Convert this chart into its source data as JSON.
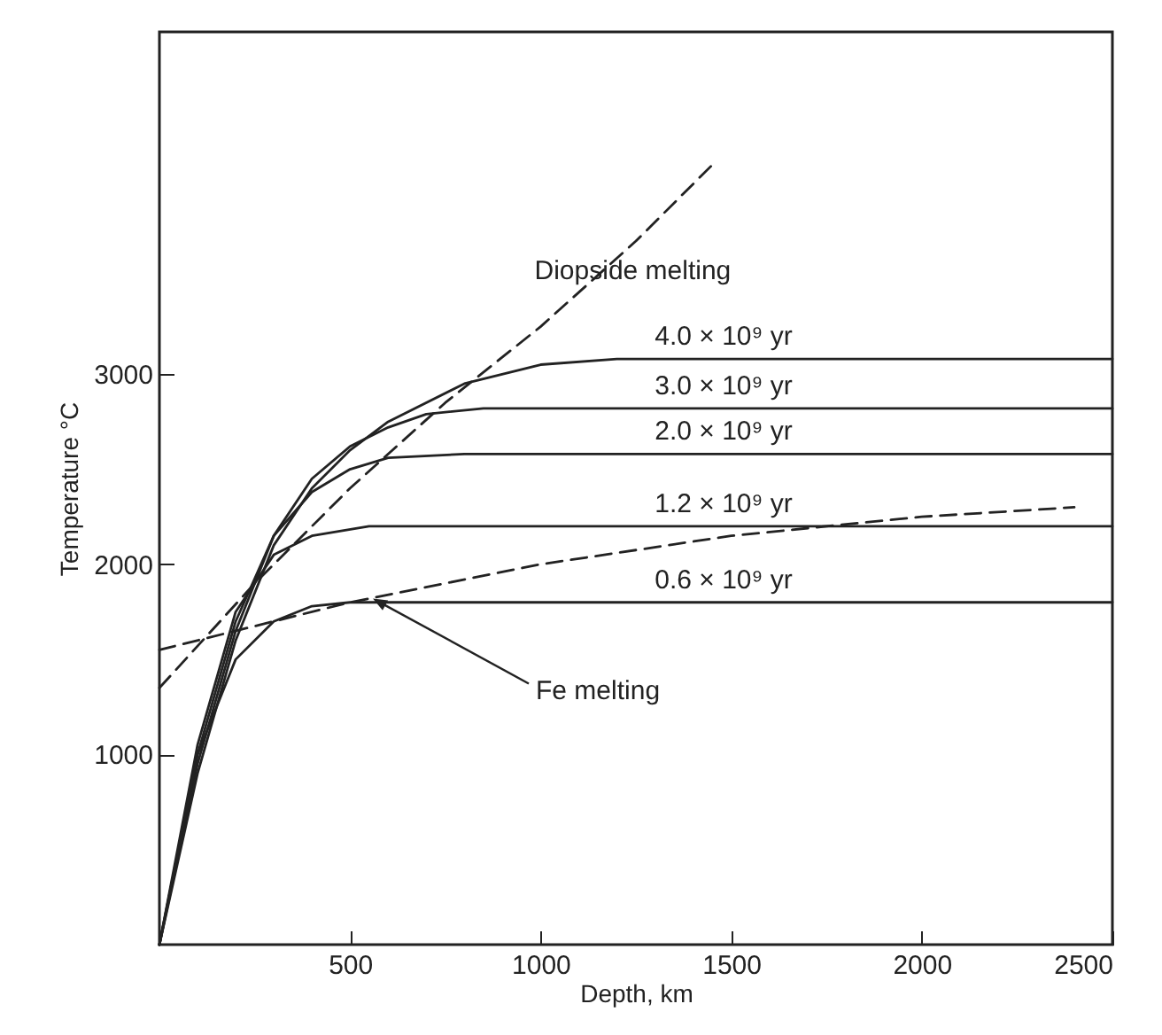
{
  "chart_data": {
    "type": "line",
    "xlabel": "Depth, km",
    "ylabel": "Temperature °C",
    "xlim": [
      0,
      2500
    ],
    "ylim": [
      0,
      4800
    ],
    "xticks": [
      500,
      1000,
      1500,
      2000,
      2500
    ],
    "yticks": [
      1000,
      2000,
      3000
    ],
    "grid": false,
    "series": [
      {
        "color": "#222222",
        "line_style": "solid",
        "x": [
          0,
          100,
          200,
          300,
          400,
          500,
          600,
          800,
          1000,
          1200,
          2500
        ],
        "values": [
          0,
          900,
          1600,
          2100,
          2400,
          2600,
          2750,
          2950,
          3050,
          3080,
          3080
        ]
      },
      {
        "color": "#222222",
        "line_style": "solid",
        "x": [
          0,
          100,
          200,
          300,
          400,
          500,
          600,
          700,
          850,
          2500
        ],
        "values": [
          0,
          950,
          1650,
          2150,
          2450,
          2620,
          2720,
          2790,
          2820,
          2820
        ]
      },
      {
        "color": "#222222",
        "line_style": "solid",
        "x": [
          0,
          100,
          200,
          300,
          400,
          500,
          600,
          800,
          2500
        ],
        "values": [
          0,
          1000,
          1700,
          2150,
          2380,
          2500,
          2560,
          2580,
          2580
        ]
      },
      {
        "color": "#222222",
        "line_style": "solid",
        "x": [
          0,
          100,
          200,
          300,
          400,
          550,
          2500
        ],
        "values": [
          0,
          1050,
          1750,
          2050,
          2150,
          2200,
          2200
        ]
      },
      {
        "color": "#222222",
        "line_style": "solid",
        "x": [
          0,
          100,
          200,
          300,
          400,
          500,
          2500
        ],
        "values": [
          0,
          1000,
          1500,
          1700,
          1780,
          1800,
          1800
        ]
      },
      {
        "color": "#222222",
        "line_style": "dashed",
        "x": [
          0,
          250,
          500,
          750,
          1000,
          1250,
          1450
        ],
        "values": [
          1350,
          1900,
          2400,
          2850,
          3250,
          3700,
          4100
        ]
      },
      {
        "color": "#222222",
        "line_style": "dashed",
        "x": [
          0,
          500,
          1000,
          1500,
          2000,
          2400
        ],
        "values": [
          1550,
          1800,
          2000,
          2150,
          2250,
          2300
        ]
      }
    ],
    "annotations": [
      {
        "text": "Diopside melting",
        "x": 1000,
        "y": 3250
      },
      {
        "text": "4.0 × 10⁹ yr",
        "x": 1480,
        "y": 3080
      },
      {
        "text": "3.0 × 10⁹ yr",
        "x": 1480,
        "y": 2820
      },
      {
        "text": "2.0 × 10⁹ yr",
        "x": 1480,
        "y": 2580
      },
      {
        "text": "1.2 × 10⁹ yr",
        "x": 1480,
        "y": 2200
      },
      {
        "text": "0.6 × 10⁹ yr",
        "x": 1480,
        "y": 1800
      },
      {
        "text": "Fe melting",
        "x": 560,
        "y": 1820
      }
    ]
  }
}
